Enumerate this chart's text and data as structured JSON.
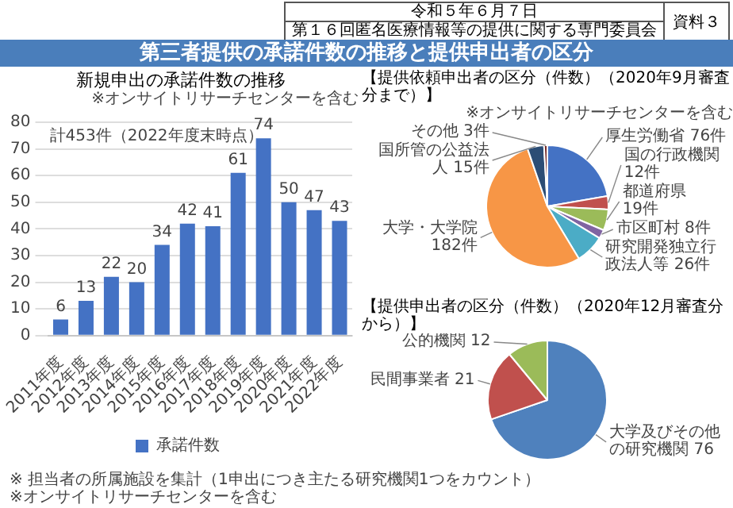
{
  "chart_data": [
    {
      "type": "other",
      "title": "第三者提供の承諾件数の推移と提供申出者の区分",
      "annotations": [
        "令和５年６月７日",
        "第１６回匿名医療情報等の提供に関する専門委員会",
        "資料３"
      ]
    },
    {
      "type": "bar",
      "title": "新規申出の承諾件数の推移",
      "annotations": [
        "※オンサイトリサーチセンターを含む",
        "計453件（2022年度末時点）"
      ],
      "categories": [
        "2011年度",
        "2012年度",
        "2013年度",
        "2014年度",
        "2015年度",
        "2016年度",
        "2017年度",
        "2018年度",
        "2019年度",
        "2020年度",
        "2021年度",
        "2022年度"
      ],
      "series": [
        {
          "name": "承諾件数",
          "color": "#4472c4",
          "values": [
            6,
            13,
            22,
            20,
            34,
            42,
            41,
            61,
            74,
            50,
            47,
            43
          ]
        }
      ],
      "ylim": [
        0,
        80
      ],
      "yticks": [
        0,
        10,
        20,
        30,
        40,
        50,
        60,
        70,
        80
      ],
      "grid": "y",
      "legend": "bottom",
      "data_labels": true
    },
    {
      "type": "pie",
      "title": "【提供依頼申出者の区分（件数）（2020年9月審査分まで）】",
      "annotations": [
        "※オンサイトリサーチセンターを含む"
      ],
      "categories": [
        "厚生労働省",
        "国の行政機関",
        "都道府県",
        "市区町村",
        "研究開発独立行政法人等",
        "大学・大学院",
        "国所管の公益法人",
        "その他"
      ],
      "values": [
        76,
        12,
        19,
        8,
        26,
        182,
        15,
        3
      ],
      "value_labels": [
        "76件",
        "12件",
        "19件",
        "8件",
        "26件",
        "182件",
        "15件",
        "3件"
      ],
      "colors": [
        "#4472c4",
        "#c0504d",
        "#9bbb59",
        "#8064a2",
        "#4bacc6",
        "#f79646",
        "#2c4d75",
        "#772c2a"
      ]
    },
    {
      "type": "pie",
      "title": "【提供申出者の区分（件数）（2020年12月審査分から）】",
      "annotations": [
        "※ 担当者の所属施設を集計（1申出につき主たる研究機関1つをカウント）",
        "※オンサイトリサーチセンターを含む"
      ],
      "categories": [
        "大学及びその他の研究機関",
        "民間事業者",
        "公的機関"
      ],
      "values": [
        76,
        21,
        12
      ],
      "colors": [
        "#4f81bd",
        "#c0504d",
        "#9bbb59"
      ],
      "data_labels": true
    }
  ]
}
